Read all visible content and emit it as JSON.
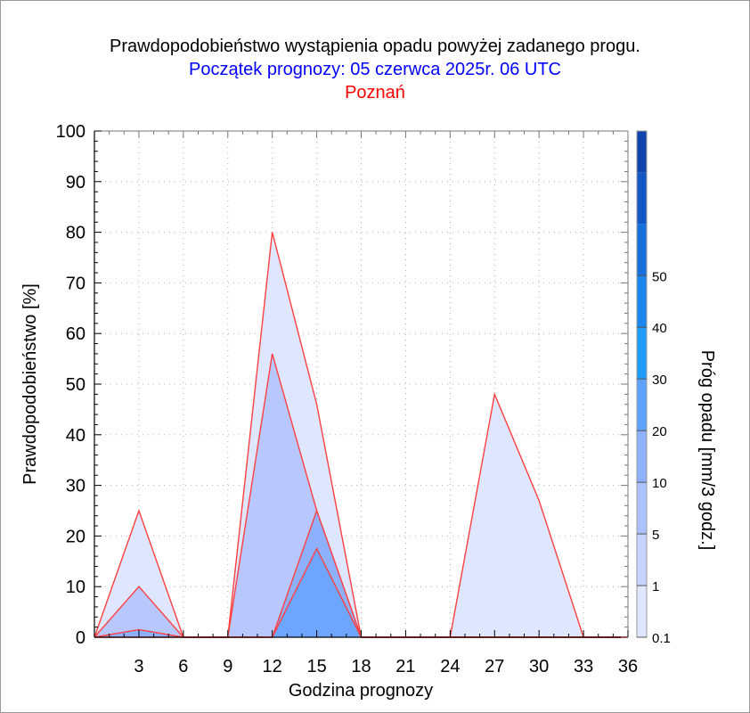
{
  "chart_data": {
    "type": "area",
    "title": "Prawdopodobieństwo wystąpienia opadu powyżej zadanego progu.",
    "subtitle": "Początek prognozy: 05 czerwca 2025r. 06 UTC",
    "location": "Poznań",
    "xlabel": "Godzina prognozy",
    "ylabel": "Prawdopodobieństwo [%]",
    "colorbar_label": "Próg opadu [mm/3 godz.]",
    "xlim": [
      0,
      36
    ],
    "ylim": [
      0,
      100
    ],
    "x_ticks": [
      3,
      6,
      9,
      12,
      15,
      18,
      21,
      24,
      27,
      30,
      33,
      36
    ],
    "y_ticks": [
      0,
      10,
      20,
      30,
      40,
      50,
      60,
      70,
      80,
      90,
      100
    ],
    "grid": true,
    "colorbar_ticks": [
      "0.1",
      "1",
      "5",
      "10",
      "20",
      "30",
      "40",
      "50"
    ],
    "colorbar_colors": [
      "#dfe6ff",
      "#c6d4ff",
      "#abc2ff",
      "#8db0ff",
      "#5ea2ff",
      "#1f9bff",
      "#1c86ef",
      "#1670dc",
      "#1257c4",
      "#0e45ad"
    ],
    "colors": {
      "title": "#000000",
      "subtitle": "#0000ff",
      "location": "#ff0000",
      "outline": "#ff4040"
    },
    "series": [
      {
        "name": "0.1",
        "color": "#dfe6ff",
        "x": [
          0,
          3,
          6,
          9,
          12,
          15,
          18,
          21,
          24,
          27,
          30,
          33,
          36
        ],
        "values": [
          0,
          25,
          0,
          0,
          80,
          46,
          0,
          0,
          0,
          48,
          27,
          0,
          0
        ]
      },
      {
        "name": "1",
        "color": "#b8c8ff",
        "x": [
          0,
          3,
          6,
          9,
          12,
          15,
          18,
          21,
          24,
          27,
          30,
          33,
          36
        ],
        "values": [
          0,
          10,
          0,
          0,
          56,
          25,
          0,
          0,
          0,
          0,
          0,
          0,
          0
        ]
      },
      {
        "name": "5",
        "color": "#8db0ff",
        "x": [
          0,
          3,
          6,
          9,
          12,
          15,
          18,
          21,
          24,
          27,
          30,
          33,
          36
        ],
        "values": [
          0,
          1.5,
          0,
          0,
          0,
          25,
          0,
          0,
          0,
          0,
          0,
          0,
          0
        ]
      },
      {
        "name": "10",
        "color": "#6ea6ff",
        "x": [
          0,
          3,
          6,
          9,
          12,
          15,
          18,
          21,
          24,
          27,
          30,
          33,
          36
        ],
        "values": [
          0,
          0,
          0,
          0,
          0,
          17.5,
          0,
          0,
          0,
          0,
          0,
          0,
          0
        ]
      }
    ]
  }
}
